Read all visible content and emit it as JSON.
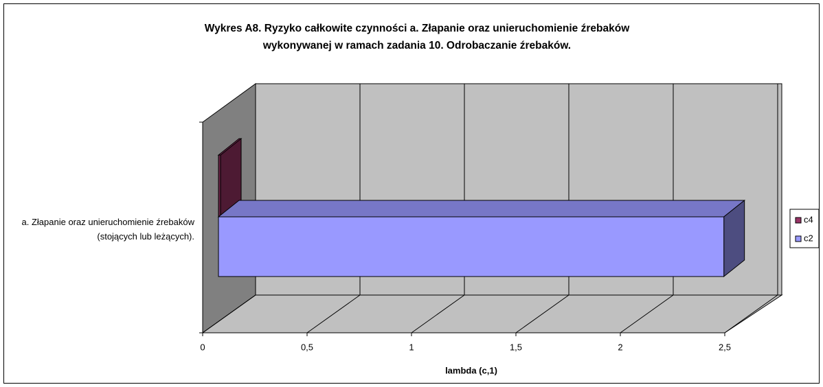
{
  "chart_data": {
    "type": "bar3d-horizontal",
    "title": [
      "Wykres A8. Ryzyko całkowite czynności a. Złapanie oraz unieruchomienie źrebaków",
      "wykonywanej w ramach zadania 10. Odrobaczanie źrebaków."
    ],
    "categories": [
      "a. Złapanie oraz unieruchomienie źrebaków (stojących lub leżących)."
    ],
    "series": [
      {
        "name": "c4",
        "color": "#993366",
        "values": [
          0.01
        ]
      },
      {
        "name": "c2",
        "color": "#9999ff",
        "values": [
          2.42
        ]
      }
    ],
    "xlabel": "lambda (c,1)",
    "xlim": [
      0,
      2.5
    ],
    "xticks": [
      0,
      {
        "value": 0.5,
        "label": "0,5"
      },
      1,
      {
        "value": 1.5,
        "label": "1,5"
      },
      2,
      {
        "value": 2.5,
        "label": "2,5"
      }
    ],
    "grid": true,
    "legend": "right"
  }
}
